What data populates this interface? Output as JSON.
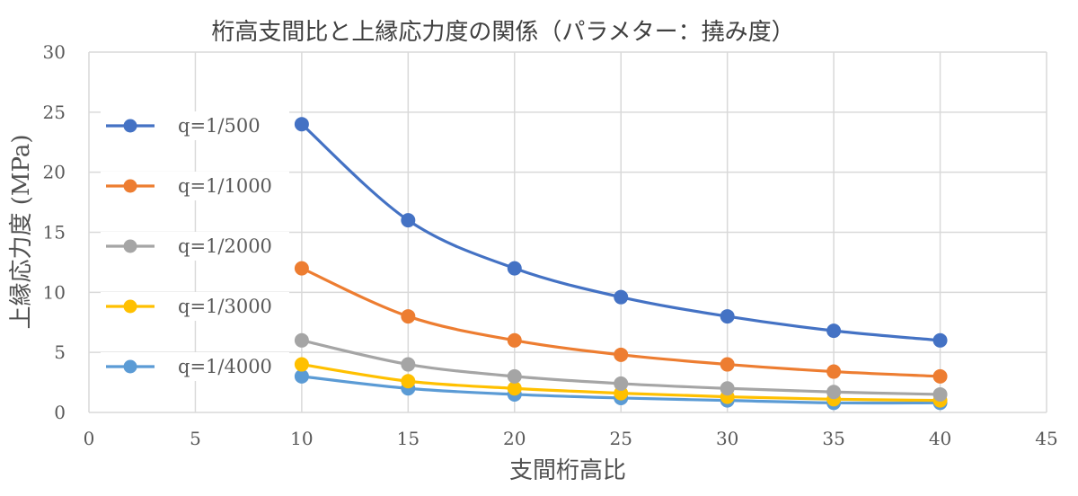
{
  "chart_data": {
    "type": "line",
    "title": "桁高支間比と上縁応力度の関係（パラメター：撓み度）",
    "xlabel": "支間桁高比",
    "ylabel": "上縁応力度 (MPa)",
    "xlim": [
      0,
      45
    ],
    "ylim": [
      0,
      30
    ],
    "xticks": [
      0,
      5,
      10,
      15,
      20,
      25,
      30,
      35,
      40,
      45
    ],
    "yticks": [
      0,
      5,
      10,
      15,
      20,
      25,
      30
    ],
    "grid": true,
    "legend_position": "left",
    "x": [
      10,
      15,
      20,
      25,
      30,
      35,
      40
    ],
    "series": [
      {
        "name": "q=1/500",
        "color": "#4472C4",
        "values": [
          24,
          16,
          12,
          9.6,
          8,
          6.8,
          6
        ]
      },
      {
        "name": "q=1/1000",
        "color": "#ED7D31",
        "values": [
          12,
          8,
          6,
          4.8,
          4,
          3.4,
          3
        ]
      },
      {
        "name": "q=1/2000",
        "color": "#A5A5A5",
        "values": [
          6,
          4,
          3,
          2.4,
          2,
          1.7,
          1.5
        ]
      },
      {
        "name": "q=1/3000",
        "color": "#FFC000",
        "values": [
          4,
          2.6,
          2,
          1.6,
          1.3,
          1.1,
          1
        ]
      },
      {
        "name": "q=1/4000",
        "color": "#5B9BD5",
        "values": [
          3,
          2,
          1.5,
          1.2,
          1,
          0.8,
          0.8
        ]
      }
    ]
  }
}
